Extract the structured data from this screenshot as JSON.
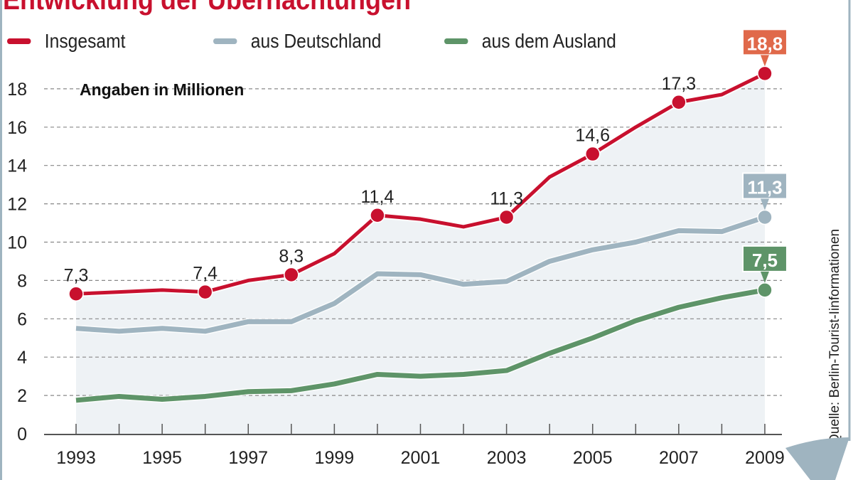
{
  "chart_data": {
    "type": "line",
    "title": "Entwicklung der Übernachtungen",
    "subtitle": "Angaben in Millionen",
    "source": "Quelle: Berlin-Tourist-Iinformationen",
    "x": [
      1993,
      1994,
      1995,
      1996,
      1997,
      1998,
      1999,
      2000,
      2001,
      2002,
      2003,
      2004,
      2005,
      2006,
      2007,
      2008,
      2009
    ],
    "x_tick_labels": [
      "1993",
      "1995",
      "1997",
      "1999",
      "2001",
      "2003",
      "2005",
      "2007",
      "2009"
    ],
    "y_tick_labels": [
      "0",
      "2",
      "4",
      "6",
      "8",
      "10",
      "12",
      "14",
      "16",
      "18"
    ],
    "ylim": [
      0,
      19
    ],
    "grid": true,
    "legend_placement": "top",
    "series": [
      {
        "name": "Insgesamt",
        "color": "#c8102e",
        "values": [
          7.3,
          7.4,
          7.5,
          7.4,
          8.0,
          8.3,
          9.4,
          11.4,
          11.2,
          10.8,
          11.3,
          13.4,
          14.6,
          16.0,
          17.3,
          17.7,
          18.8
        ],
        "labels": [
          {
            "year": 1993,
            "text": "7,3"
          },
          {
            "year": 1996,
            "text": "7,4"
          },
          {
            "year": 1998,
            "text": "8,3"
          },
          {
            "year": 2000,
            "text": "11,4"
          },
          {
            "year": 2003,
            "text": "11,3"
          },
          {
            "year": 2005,
            "text": "14,6"
          },
          {
            "year": 2007,
            "text": "17,3"
          }
        ],
        "end_label": "18,8",
        "end_label_color": "#e0694a"
      },
      {
        "name": "aus Deutschland",
        "color": "#9fb4c0",
        "values": [
          5.5,
          5.35,
          5.5,
          5.35,
          5.85,
          5.85,
          6.8,
          8.35,
          8.3,
          7.8,
          7.95,
          9.0,
          9.6,
          10.0,
          10.6,
          10.55,
          11.3
        ],
        "end_label": "11,3",
        "end_label_color": "#9fb4c0"
      },
      {
        "name": "aus dem Ausland",
        "color": "#5e9468",
        "values": [
          1.75,
          1.95,
          1.8,
          1.95,
          2.2,
          2.25,
          2.6,
          3.1,
          3.0,
          3.1,
          3.3,
          4.2,
          5.0,
          5.9,
          6.6,
          7.1,
          7.5
        ],
        "end_label": "7,5",
        "end_label_color": "#5e9468"
      }
    ]
  }
}
